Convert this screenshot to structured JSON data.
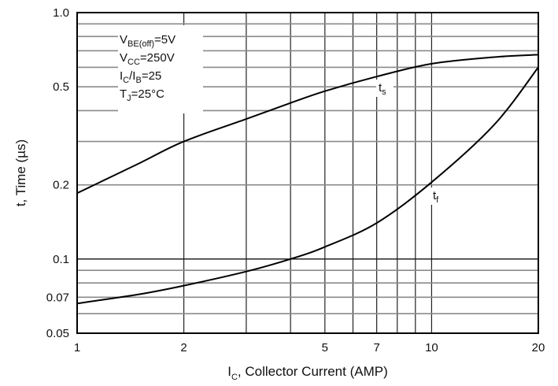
{
  "chart_data": {
    "type": "line",
    "xscale": "log",
    "yscale": "log",
    "xlim": [
      1,
      20
    ],
    "ylim": [
      0.05,
      1.0
    ],
    "x_ticks": [
      "1",
      "2",
      "5",
      "7",
      "10",
      "20"
    ],
    "y_ticks": [
      "1.0",
      "0.5",
      "0.2",
      "0.1",
      "0.07",
      "0.05"
    ],
    "x_tick_values": [
      1,
      2,
      5,
      7,
      10,
      20
    ],
    "y_tick_values": [
      1.0,
      0.5,
      0.2,
      0.1,
      0.07,
      0.05
    ],
    "grid_x": [
      1,
      2,
      3,
      4,
      5,
      6,
      7,
      8,
      9,
      10,
      20
    ],
    "grid_y": [
      0.05,
      0.06,
      0.07,
      0.08,
      0.09,
      0.1,
      0.2,
      0.3,
      0.4,
      0.5,
      0.6,
      0.7,
      0.8,
      0.9,
      1.0
    ],
    "grid": true,
    "xlabel": {
      "main": "I",
      "sub": "C",
      "rest": ", Collector Current (AMP)"
    },
    "ylabel": "t, Time (µs)",
    "conditions": [
      {
        "main": "V",
        "sub": "BE(off)",
        "rest": "=5V"
      },
      {
        "main": "V",
        "sub": "CC",
        "rest": "=250V"
      },
      {
        "main": "I",
        "sub": "C",
        "mid": "/I",
        "sub2": "B",
        "rest": "=25"
      },
      {
        "main": "T",
        "sub": "J",
        "rest": "=25°C"
      }
    ],
    "series": [
      {
        "name": "ts",
        "label": {
          "main": "t",
          "sub": "s"
        },
        "x": [
          1,
          1.5,
          2,
          3,
          4,
          5,
          7,
          10,
          15,
          20
        ],
        "y": [
          0.185,
          0.245,
          0.3,
          0.37,
          0.43,
          0.48,
          0.55,
          0.62,
          0.66,
          0.675
        ]
      },
      {
        "name": "tf",
        "label": {
          "main": "t",
          "sub": "f"
        },
        "x": [
          1,
          1.5,
          2,
          3,
          4,
          5,
          7,
          10,
          15,
          20
        ],
        "y": [
          0.066,
          0.072,
          0.078,
          0.089,
          0.1,
          0.112,
          0.14,
          0.205,
          0.35,
          0.6
        ]
      }
    ]
  }
}
